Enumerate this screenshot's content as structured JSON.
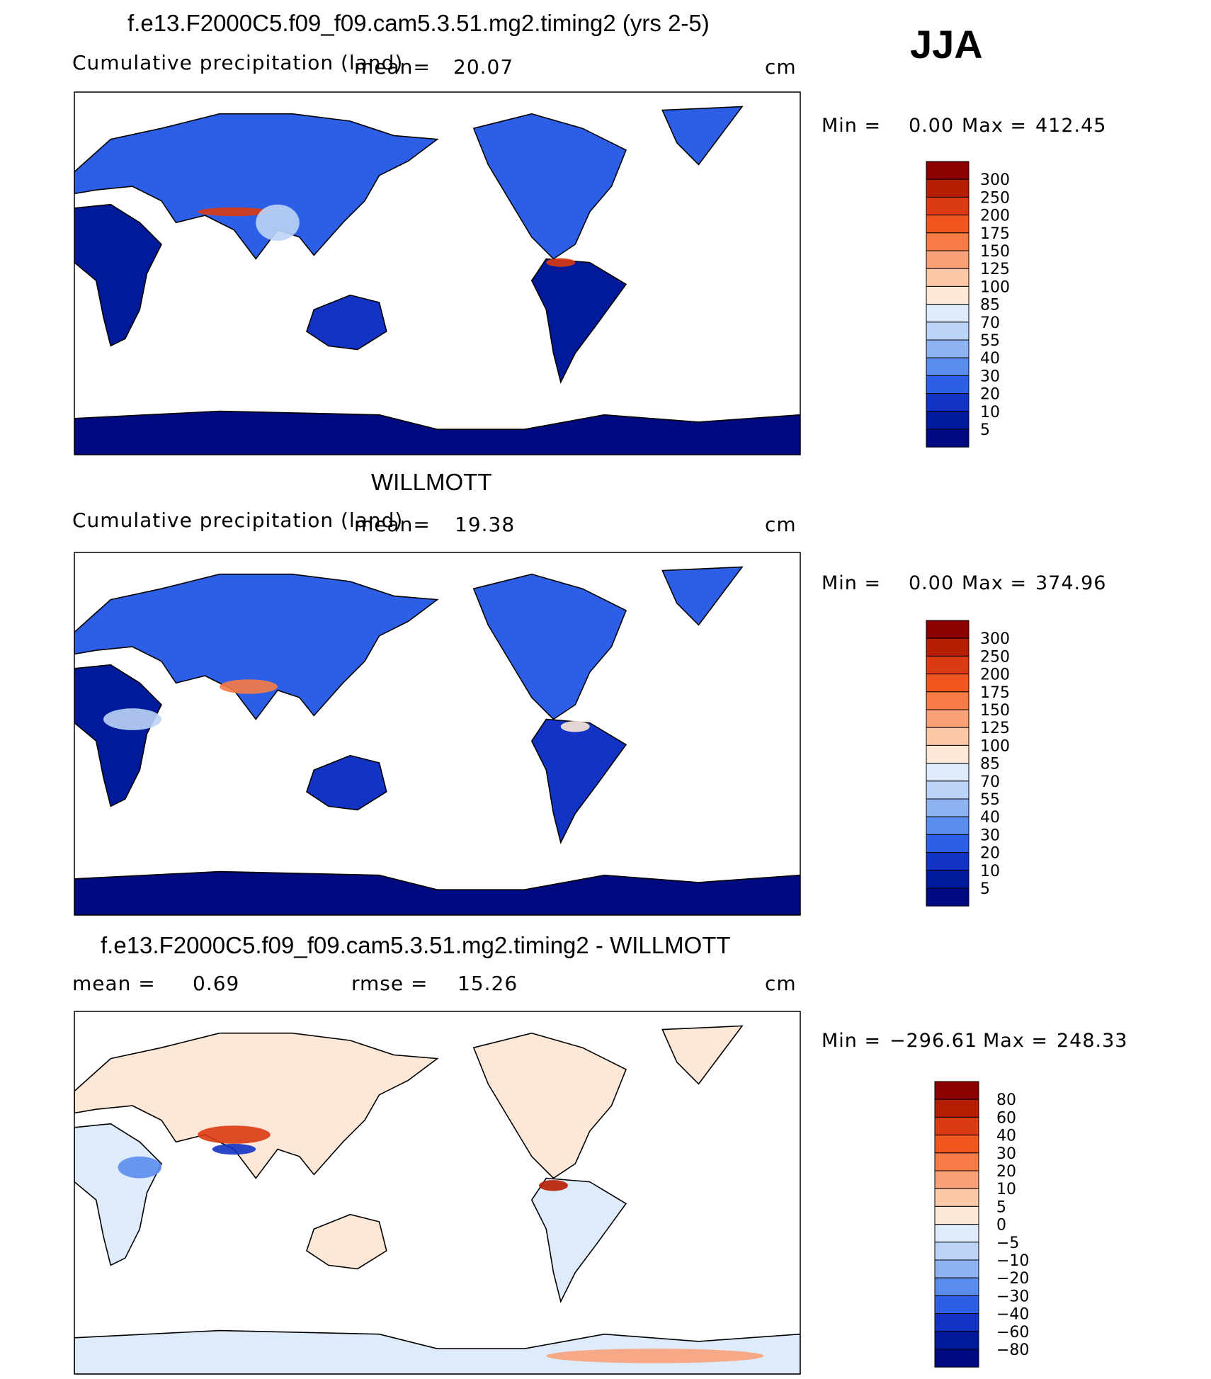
{
  "season": "JJA",
  "chart_data": [
    {
      "type": "heatmap",
      "title": "f.e13.F2000C5.f09_f09.cam5.3.51.mg2.timing2 (yrs 2-5)",
      "subtitle": "Cumulative precipitation (land)",
      "mean_label": "mean=",
      "mean": "20.07",
      "units": "cm",
      "min_label": "Min =",
      "min": "0.00",
      "max_label": "Max =",
      "max": "412.45",
      "legend_levels": [
        "300",
        "250",
        "200",
        "175",
        "150",
        "125",
        "100",
        "85",
        "70",
        "55",
        "40",
        "30",
        "20",
        "10",
        "5"
      ]
    },
    {
      "type": "heatmap",
      "title": "WILLMOTT",
      "subtitle": "Cumulative precipitation (land)",
      "mean_label": "mean=",
      "mean": "19.38",
      "units": "cm",
      "min_label": "Min =",
      "min": "0.00",
      "max_label": "Max =",
      "max": "374.96",
      "legend_levels": [
        "300",
        "250",
        "200",
        "175",
        "150",
        "125",
        "100",
        "85",
        "70",
        "55",
        "40",
        "30",
        "20",
        "10",
        "5"
      ]
    },
    {
      "type": "heatmap",
      "title": "f.e13.F2000C5.f09_f09.cam5.3.51.mg2.timing2 - WILLMOTT",
      "mean_label": "mean =",
      "mean": "0.69",
      "rmse_label": "rmse =",
      "rmse": "15.26",
      "units": "cm",
      "min_label": "Min =",
      "min": "−296.61",
      "max_label": "Max =",
      "max": "248.33",
      "legend_levels": [
        "80",
        "60",
        "40",
        "30",
        "20",
        "10",
        "5",
        "0",
        "−5",
        "−10",
        "−20",
        "−30",
        "−40",
        "−60",
        "−80"
      ]
    }
  ],
  "colors": {
    "precip_scale": [
      "#8b0000",
      "#b51e00",
      "#dc3a12",
      "#f0561e",
      "#f77b45",
      "#f9a27a",
      "#fcc9a8",
      "#fde8d8",
      "#ddebfa",
      "#bcd4f7",
      "#90b4f2",
      "#5b8df0",
      "#2d5fe6",
      "#1233c3",
      "#001a99",
      "#000a80"
    ],
    "diff_scale": [
      "#8b0000",
      "#b51e00",
      "#dc3a12",
      "#f0561e",
      "#f77b45",
      "#f9a27a",
      "#fcc9a8",
      "#fde8d8",
      "#ddebfa",
      "#bcd4f7",
      "#90b4f2",
      "#5b8df0",
      "#2d5fe6",
      "#1233c3",
      "#001a99",
      "#000a80"
    ]
  }
}
